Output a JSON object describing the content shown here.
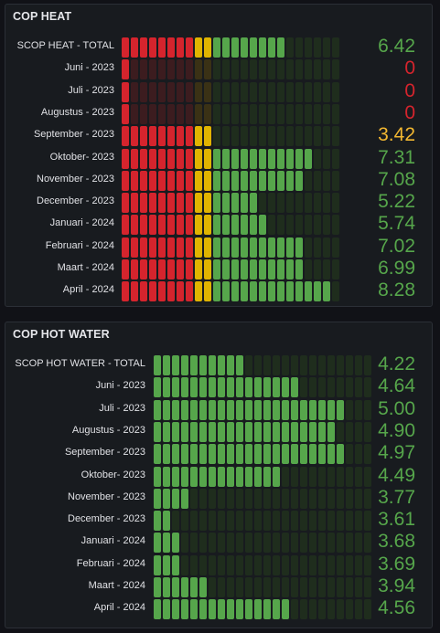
{
  "colors": {
    "red": "#d5242d",
    "yellow": "#e0b400",
    "green": "#56a64b",
    "red_dim": "#3c1c1f",
    "yellow_dim": "#3a3115",
    "green_dim": "#1f2d1d",
    "value_red": "#d5242d",
    "value_yellow": "#f2b731",
    "value_green": "#56a64b"
  },
  "heat": {
    "title": "COP HEAT",
    "max": 8.5,
    "thresholds": [
      3.0,
      3.5
    ],
    "rows": [
      {
        "label": "SCOP HEAT - TOTAL",
        "value": "6.42",
        "num": 6.42,
        "status": "green"
      },
      {
        "label": "Juni - 2023",
        "value": "0",
        "num": 0,
        "status": "red"
      },
      {
        "label": "Juli - 2023",
        "value": "0",
        "num": 0,
        "status": "red"
      },
      {
        "label": "Augustus - 2023",
        "value": "0",
        "num": 0,
        "status": "red"
      },
      {
        "label": "September - 2023",
        "value": "3.42",
        "num": 3.42,
        "status": "yellow"
      },
      {
        "label": "Oktober- 2023",
        "value": "7.31",
        "num": 7.31,
        "status": "green"
      },
      {
        "label": "November - 2023",
        "value": "7.08",
        "num": 7.08,
        "status": "green"
      },
      {
        "label": "December - 2023",
        "value": "5.22",
        "num": 5.22,
        "status": "green"
      },
      {
        "label": "Januari - 2024",
        "value": "5.74",
        "num": 5.74,
        "status": "green"
      },
      {
        "label": "Februari - 2024",
        "value": "7.02",
        "num": 7.02,
        "status": "green"
      },
      {
        "label": "Maart - 2024",
        "value": "6.99",
        "num": 6.99,
        "status": "green"
      },
      {
        "label": "April - 2024",
        "value": "8.28",
        "num": 8.28,
        "status": "green"
      }
    ]
  },
  "water": {
    "title": "COP HOT WATER",
    "min": 3.5,
    "max": 5.0,
    "rows": [
      {
        "label": "SCOP HOT WATER - TOTAL",
        "value": "4.22",
        "num": 4.22,
        "status": "green"
      },
      {
        "label": "Juni - 2023",
        "value": "4.64",
        "num": 4.64,
        "status": "green"
      },
      {
        "label": "Juli - 2023",
        "value": "5.00",
        "num": 5.0,
        "status": "green"
      },
      {
        "label": "Augustus - 2023",
        "value": "4.90",
        "num": 4.9,
        "status": "green"
      },
      {
        "label": "September - 2023",
        "value": "4.97",
        "num": 4.97,
        "status": "green"
      },
      {
        "label": "Oktober- 2023",
        "value": "4.49",
        "num": 4.49,
        "status": "green"
      },
      {
        "label": "November - 2023",
        "value": "3.77",
        "num": 3.77,
        "status": "green"
      },
      {
        "label": "December - 2023",
        "value": "3.61",
        "num": 3.61,
        "status": "green"
      },
      {
        "label": "Januari - 2024",
        "value": "3.68",
        "num": 3.68,
        "status": "green"
      },
      {
        "label": "Februari - 2024",
        "value": "3.69",
        "num": 3.69,
        "status": "green"
      },
      {
        "label": "Maart - 2024",
        "value": "3.94",
        "num": 3.94,
        "status": "green"
      },
      {
        "label": "April - 2024",
        "value": "4.56",
        "num": 4.56,
        "status": "green"
      }
    ]
  }
}
